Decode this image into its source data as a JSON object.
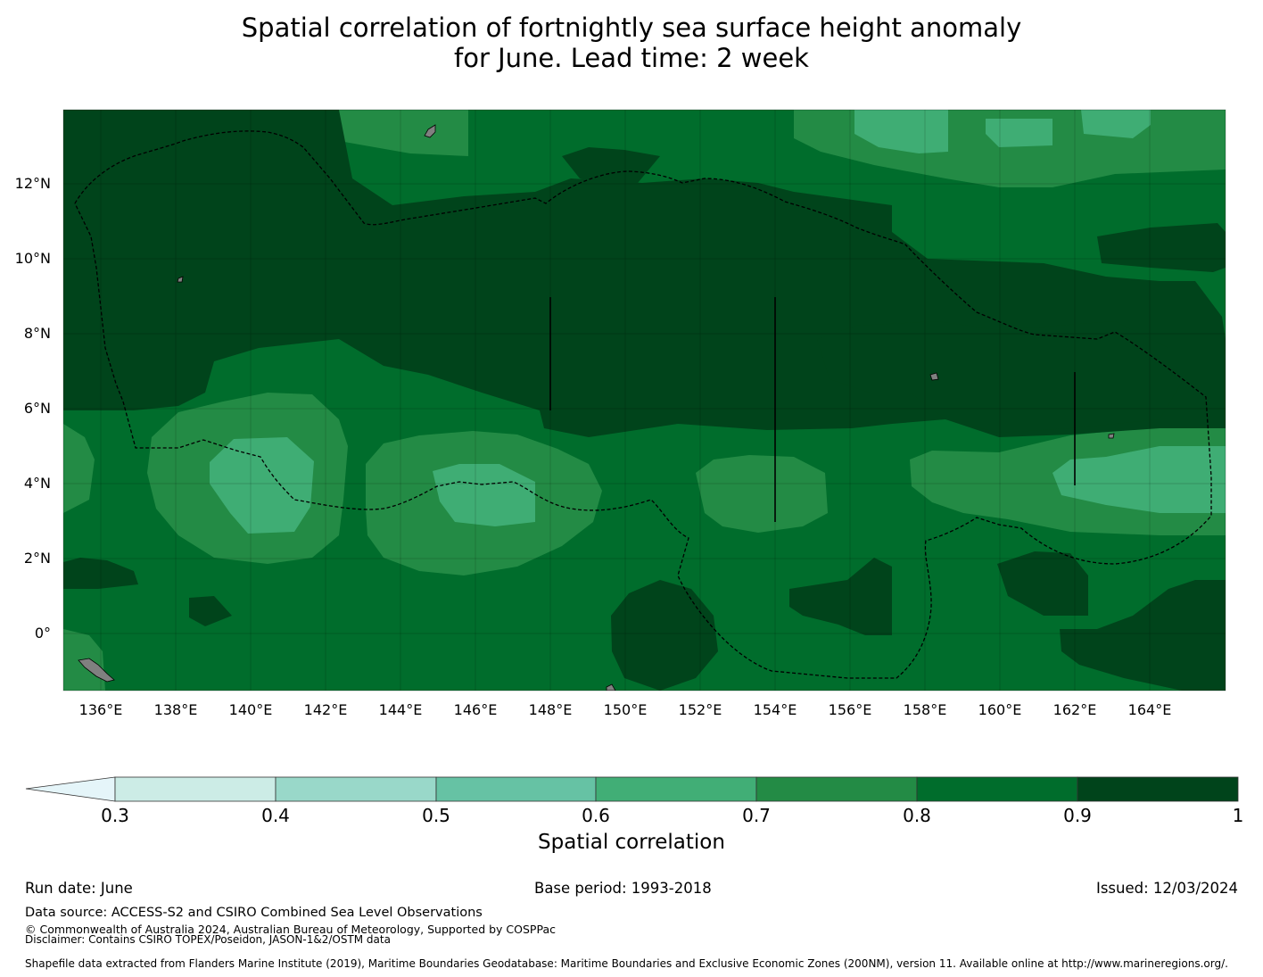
{
  "title": {
    "line1": "Spatial correlation of fortnightly sea surface height anomaly",
    "line2": "for June. Lead time: 2 week"
  },
  "map": {
    "lat_ticks": [
      "12°N",
      "10°N",
      "8°N",
      "6°N",
      "4°N",
      "2°N",
      "0°"
    ],
    "lon_ticks": [
      "136°E",
      "138°E",
      "140°E",
      "142°E",
      "144°E",
      "146°E",
      "148°E",
      "150°E",
      "152°E",
      "154°E",
      "156°E",
      "158°E",
      "160°E",
      "162°E",
      "164°E"
    ],
    "extent": {
      "lon": [
        135,
        166
      ],
      "lat": [
        -1.5,
        14
      ]
    },
    "colors": {
      "c06_07": "#3fad74",
      "c07_08": "#238b45",
      "c08_09": "#006d2c",
      "c09_10": "#00441b",
      "land": "#808080",
      "grid": "#000000"
    }
  },
  "colorbar": {
    "ticks": [
      "0.3",
      "0.4",
      "0.5",
      "0.6",
      "0.7",
      "0.8",
      "0.9",
      "1"
    ],
    "colors": [
      "#e5f5f9",
      "#ccece6",
      "#99d8c9",
      "#66c2a4",
      "#41ae76",
      "#238b45",
      "#006d2c",
      "#00441b"
    ],
    "label": "Spatial correlation"
  },
  "footer": {
    "run_date": "Run date: June",
    "base_period": "Base period: 1993-2018",
    "issued": "Issued: 12/03/2024",
    "data_source": "Data source: ACCESS-S2 and CSIRO Combined Sea Level Observations",
    "copyright": "© Commonwealth of Australia 2024, Australian Bureau of Meteorology, Supported by COSPPac",
    "disclaimer": "Disclaimer: Contains CSIRO TOPEX/Poseidon, JASON-1&2/OSTM data",
    "shapefile": "Shapefile data extracted from Flanders Marine Institute (2019), Maritime Boundaries Geodatabase: Maritime Boundaries and Exclusive Economic Zones (200NM), version 11. Available online at http://www.marineregions.org/."
  }
}
